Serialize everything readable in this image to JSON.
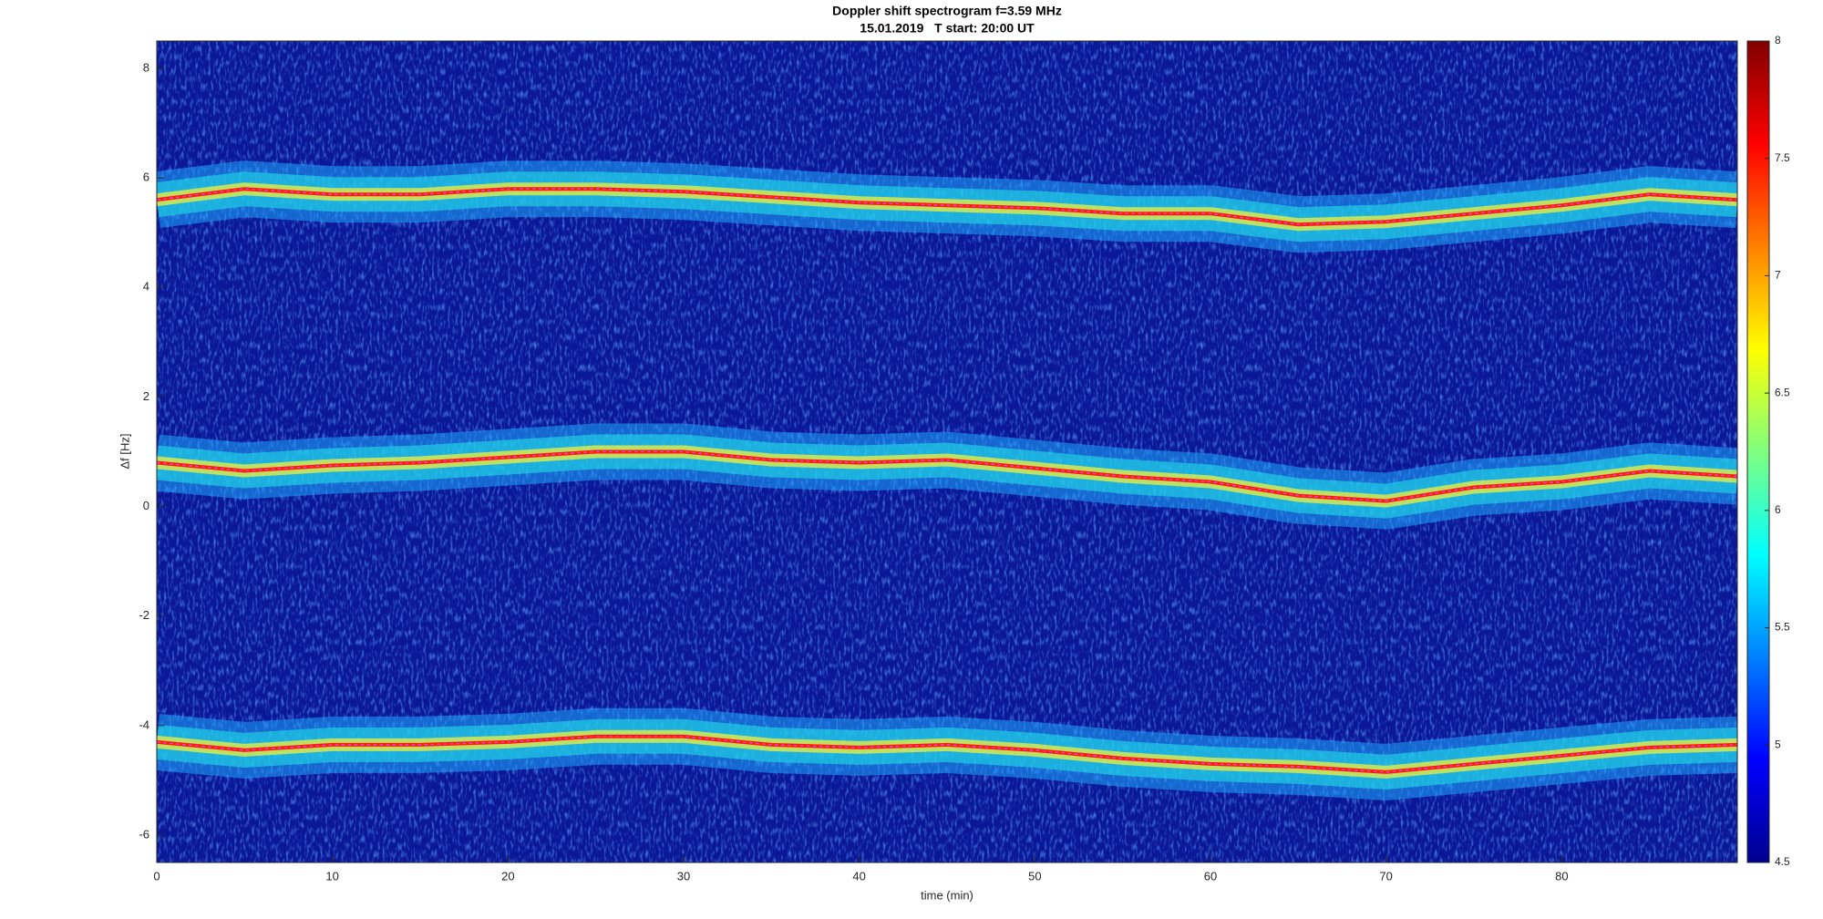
{
  "chart_data": {
    "type": "spectrogram",
    "title": "Doppler shift spectrogram f=3.59 MHz",
    "subtitle": "15.01.2019   T start: 20:00 UT",
    "x_label": "time (min)",
    "y_label": "Δf [Hz]",
    "x": [
      0,
      5,
      10,
      15,
      20,
      25,
      30,
      35,
      40,
      45,
      50,
      55,
      60,
      65,
      70,
      75,
      80,
      85,
      90
    ],
    "series": [
      {
        "color": "#ff1a00",
        "values": [
          5.6,
          5.8,
          5.7,
          5.7,
          5.8,
          5.8,
          5.75,
          5.65,
          5.55,
          5.5,
          5.45,
          5.35,
          5.35,
          5.15,
          5.2,
          5.35,
          5.5,
          5.7,
          5.6
        ]
      },
      {
        "color": "#ff1a00",
        "values": [
          0.8,
          0.65,
          0.75,
          0.8,
          0.9,
          1.0,
          1.0,
          0.85,
          0.8,
          0.85,
          0.7,
          0.55,
          0.45,
          0.2,
          0.1,
          0.35,
          0.45,
          0.65,
          0.55
        ]
      },
      {
        "color": "#ff1a00",
        "values": [
          -4.3,
          -4.45,
          -4.35,
          -4.35,
          -4.3,
          -4.2,
          -4.2,
          -4.35,
          -4.4,
          -4.35,
          -4.45,
          -4.6,
          -4.7,
          -4.75,
          -4.85,
          -4.7,
          -4.55,
          -4.4,
          -4.35
        ]
      }
    ],
    "xlim": [
      0,
      90
    ],
    "xticks": [
      0,
      10,
      20,
      30,
      40,
      50,
      60,
      70,
      80
    ],
    "ylim": [
      -6.5,
      8.5
    ],
    "yticks": [
      -6,
      -4,
      -2,
      0,
      2,
      4,
      6,
      8
    ],
    "background_color": "#0a1796",
    "colormap": "jet",
    "clim": [
      4.5,
      8
    ],
    "cticks": [
      4.5,
      5,
      5.5,
      6,
      6.5,
      7,
      7.5,
      8
    ]
  }
}
